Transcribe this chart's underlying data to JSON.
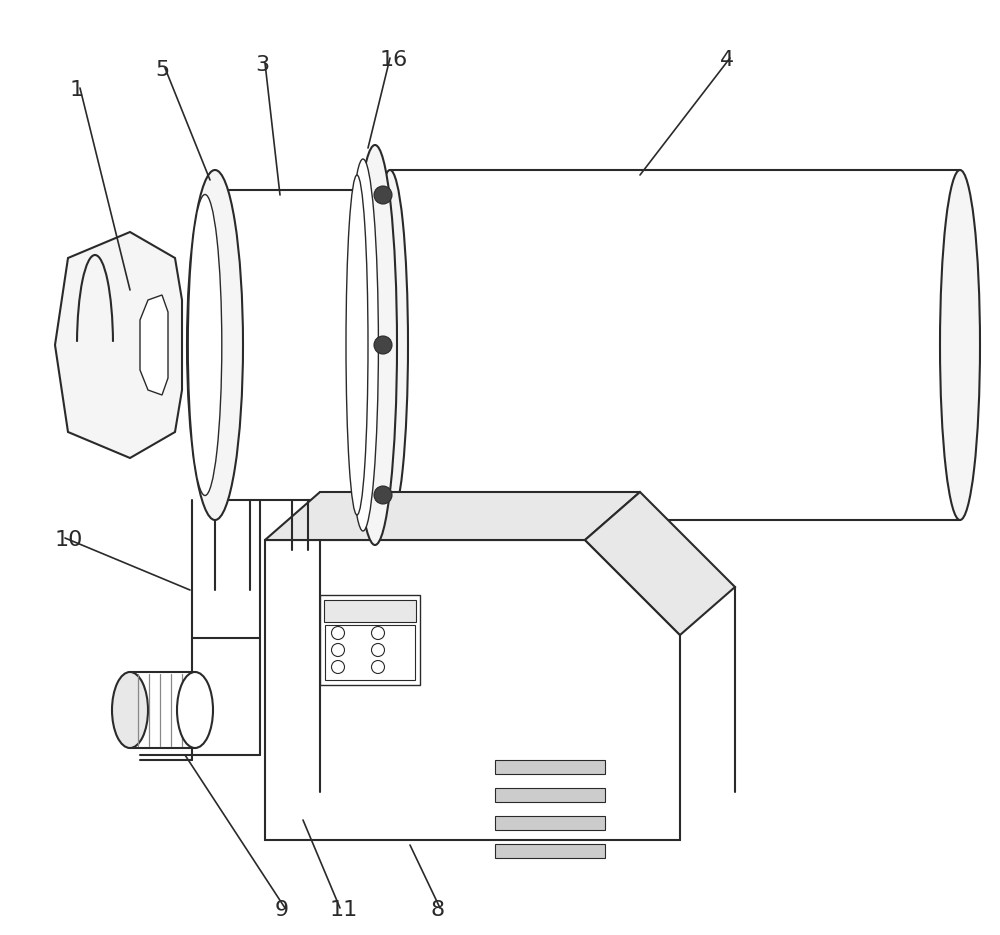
{
  "bg": "#ffffff",
  "lc": "#2a2a2a",
  "lw": 1.5,
  "lt": 1.0,
  "fs": 16,
  "fc_light": "#f5f5f5",
  "fc_mid": "#e8e8e8",
  "fc_dark": "#d0d0d0",
  "screw_color": "#444444",
  "vent_color": "#cccccc"
}
